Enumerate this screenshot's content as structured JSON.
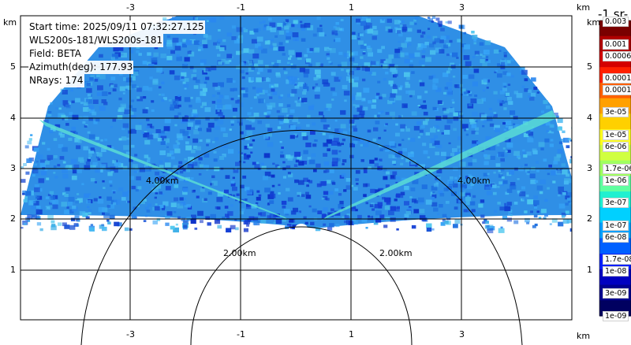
{
  "info": {
    "start_time": "Start time: 2025/09/11 07:32:27.125",
    "instrument": "WLS200s-181/WLS200s-181",
    "field": "Field: BETA",
    "azimuth": "Azimuth(deg): 177.93",
    "nrays": "NRays: 174"
  },
  "axes": {
    "x_unit": "km",
    "y_unit": "km",
    "x_ticks": [
      "-3",
      "-1",
      "1",
      "3"
    ],
    "y_ticks": [
      "5",
      "4",
      "3",
      "2",
      "1"
    ]
  },
  "range_rings": [
    "2.00km",
    "4.00km"
  ],
  "colorbar": {
    "title": "-1 sr-",
    "labels": [
      "0.003",
      "0.001",
      "0.0006",
      "0.00017",
      "0.0001",
      "3e-05",
      "1e-05",
      "6e-06",
      "1.7e-06",
      "1e-06",
      "3e-07",
      "1e-07",
      "6e-08",
      "1.7e-08",
      "1e-08",
      "3e-09",
      "1e-09"
    ],
    "colors": [
      "#7a0000",
      "#b00000",
      "#d40000",
      "#ff2000",
      "#ff6000",
      "#ffa000",
      "#ffd000",
      "#ffff20",
      "#d0ff40",
      "#a0ff60",
      "#60ffa0",
      "#20f0d0",
      "#00d0ff",
      "#00a0ff",
      "#0060ff",
      "#0020ff",
      "#0000c0",
      "#000090",
      "#000060"
    ]
  }
}
